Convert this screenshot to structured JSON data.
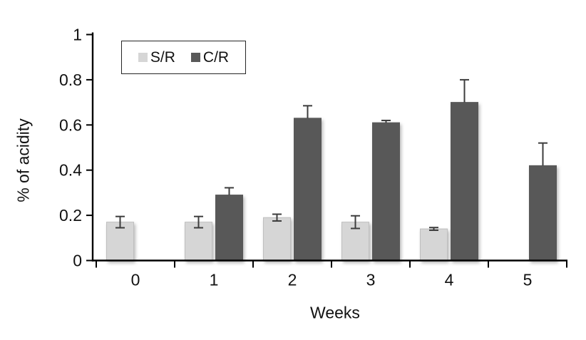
{
  "chart_data": {
    "type": "bar",
    "title": "",
    "xlabel": "Weeks",
    "ylabel": "% of acidity",
    "categories": [
      "0",
      "1",
      "2",
      "3",
      "4",
      "5"
    ],
    "ylim": [
      0,
      1
    ],
    "yticks": [
      0,
      0.2,
      0.4,
      0.6,
      0.8,
      1
    ],
    "ytick_labels": [
      "0",
      "0.2",
      "0.4",
      "0.6",
      "0.8",
      "1"
    ],
    "grid": false,
    "legend_position": "inside-top-left",
    "series": [
      {
        "name": "S/R",
        "color": "#d6d6d6",
        "border": "#bfbfbf",
        "values": [
          0.17,
          0.17,
          0.19,
          0.17,
          0.14,
          null
        ],
        "errors": [
          0.025,
          0.025,
          0.015,
          0.028,
          0.006,
          null
        ],
        "error_style": "both"
      },
      {
        "name": "C/R",
        "color": "#595959",
        "border": "#595959",
        "values": [
          null,
          0.29,
          0.63,
          0.61,
          0.7,
          0.42
        ],
        "errors": [
          null,
          0.032,
          0.055,
          0.01,
          0.1,
          0.1
        ],
        "error_style": "plus"
      }
    ],
    "colors": {
      "axis": "#000000",
      "error_bar": "#3d3d3d",
      "text": "#111111"
    }
  }
}
